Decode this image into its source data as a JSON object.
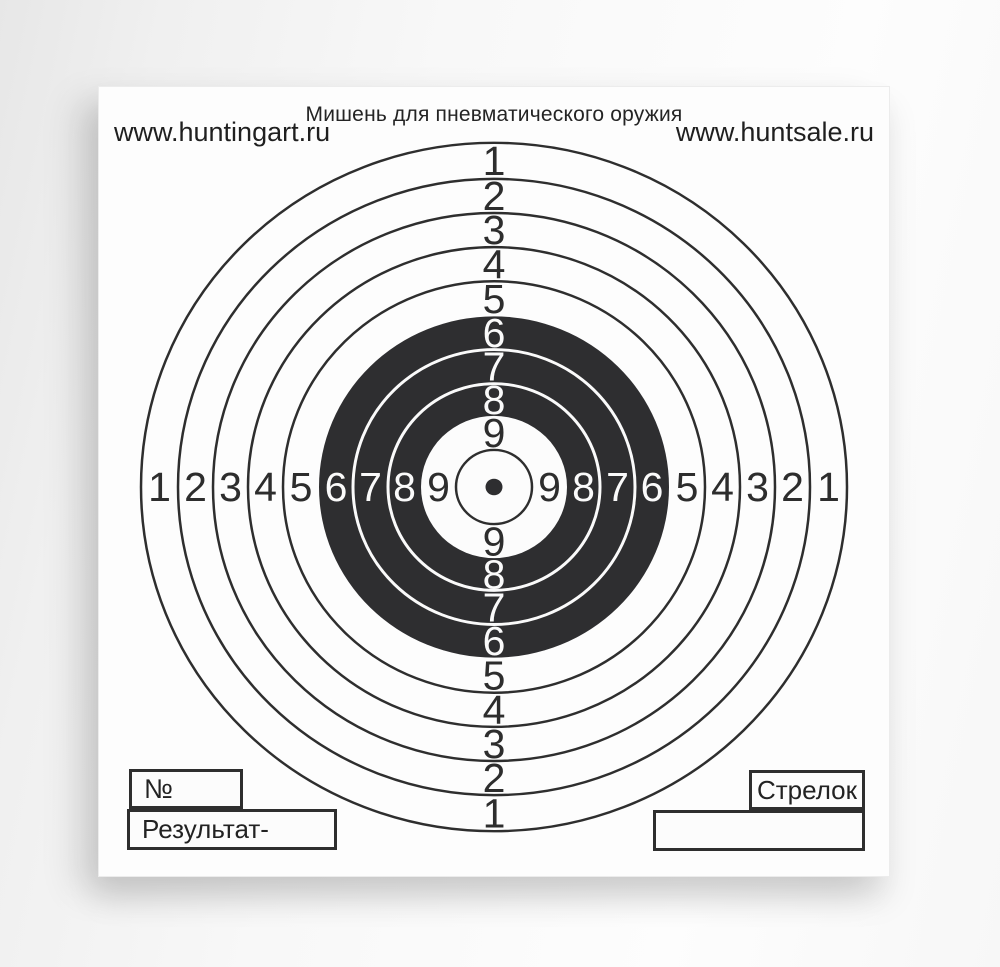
{
  "header": {
    "title": "Мишень для пневматического оружия",
    "site_left": "www.huntingart.ru",
    "site_right": "www.huntsale.ru"
  },
  "target": {
    "ring_numbers": [
      "1",
      "2",
      "3",
      "4",
      "5",
      "6",
      "7",
      "8",
      "9"
    ],
    "colors": {
      "ink": "#2d2d2d",
      "label_light": "#fafafa",
      "paper": "#fdfdfd"
    }
  },
  "footer": {
    "number_label": "№",
    "result_label": "Результат-",
    "shooter_label": "Стрелок"
  }
}
